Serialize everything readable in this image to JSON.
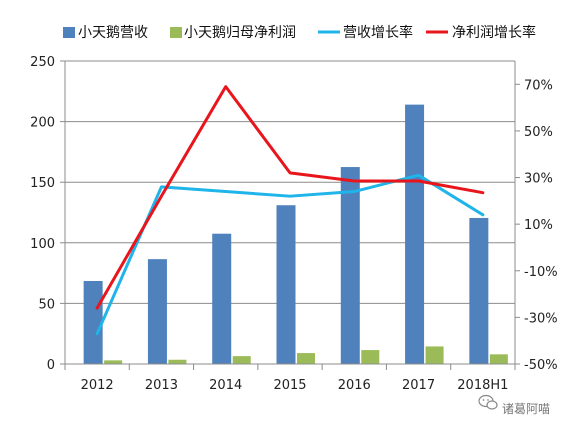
{
  "chart_data": {
    "type": "bar",
    "categories": [
      "2012",
      "2013",
      "2014",
      "2015",
      "2016",
      "2017",
      "2018H1"
    ],
    "series": [
      {
        "name": "小天鹅营收",
        "kind": "bar",
        "axis": "left",
        "color": "#4f81bd",
        "values": [
          68.5,
          86.5,
          107.5,
          131,
          162.5,
          214,
          120.5
        ]
      },
      {
        "name": "小天鹅归母净利润",
        "kind": "bar",
        "axis": "left",
        "color": "#9bbb59",
        "values": [
          3,
          3.5,
          6.5,
          9,
          11.5,
          14.5,
          8
        ]
      },
      {
        "name": "营收增长率",
        "kind": "line",
        "axis": "right",
        "color": "#1fb4ea",
        "values": [
          -37,
          26,
          24,
          22,
          24,
          31,
          14
        ]
      },
      {
        "name": "净利润增长率",
        "kind": "line",
        "axis": "right",
        "color": "#e8161c",
        "values": [
          -26,
          22,
          69,
          32,
          28.5,
          28.5,
          23.5
        ]
      }
    ],
    "y_left": {
      "min": 0,
      "max": 250,
      "ticks": [
        0,
        50,
        100,
        150,
        200,
        250
      ]
    },
    "y_right": {
      "min": -50,
      "max": 80,
      "ticks": [
        -50,
        -30,
        -10,
        10,
        30,
        50,
        70
      ],
      "tick_labels": [
        "-50%",
        "-30%",
        "-10%",
        "10%",
        "30%",
        "50%",
        "70%"
      ]
    },
    "grid": true,
    "legend_position": "top"
  },
  "watermark": {
    "text": "诸葛阿喵",
    "icon": "wechat-icon"
  }
}
